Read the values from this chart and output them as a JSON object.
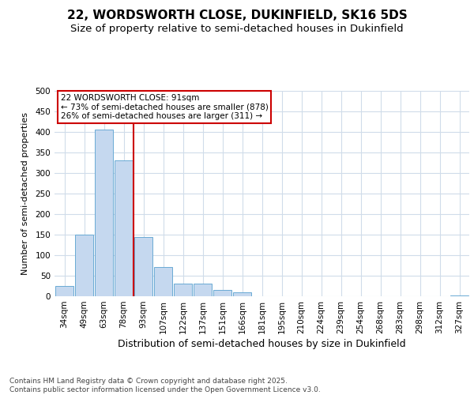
{
  "title1": "22, WORDSWORTH CLOSE, DUKINFIELD, SK16 5DS",
  "title2": "Size of property relative to semi-detached houses in Dukinfield",
  "xlabel": "Distribution of semi-detached houses by size in Dukinfield",
  "ylabel": "Number of semi-detached properties",
  "categories": [
    "34sqm",
    "49sqm",
    "63sqm",
    "78sqm",
    "93sqm",
    "107sqm",
    "122sqm",
    "137sqm",
    "151sqm",
    "166sqm",
    "181sqm",
    "195sqm",
    "210sqm",
    "224sqm",
    "239sqm",
    "254sqm",
    "268sqm",
    "283sqm",
    "298sqm",
    "312sqm",
    "327sqm"
  ],
  "values": [
    25,
    150,
    405,
    330,
    145,
    72,
    30,
    30,
    15,
    10,
    0,
    0,
    0,
    0,
    0,
    0,
    0,
    0,
    0,
    0,
    2
  ],
  "bar_color": "#c5d8ef",
  "bar_edge_color": "#6aaad4",
  "grid_color": "#d0dcea",
  "redline_index": 3.5,
  "annotation_text": "22 WORDSWORTH CLOSE: 91sqm\n← 73% of semi-detached houses are smaller (878)\n26% of semi-detached houses are larger (311) →",
  "annotation_box_color": "#ffffff",
  "annotation_box_edge": "#cc0000",
  "redline_color": "#cc0000",
  "footnote": "Contains HM Land Registry data © Crown copyright and database right 2025.\nContains public sector information licensed under the Open Government Licence v3.0.",
  "ylim": [
    0,
    500
  ],
  "yticks": [
    0,
    50,
    100,
    150,
    200,
    250,
    300,
    350,
    400,
    450,
    500
  ],
  "title1_fontsize": 11,
  "title2_fontsize": 9.5,
  "xlabel_fontsize": 9,
  "ylabel_fontsize": 8,
  "tick_fontsize": 7.5,
  "footnote_fontsize": 6.5
}
